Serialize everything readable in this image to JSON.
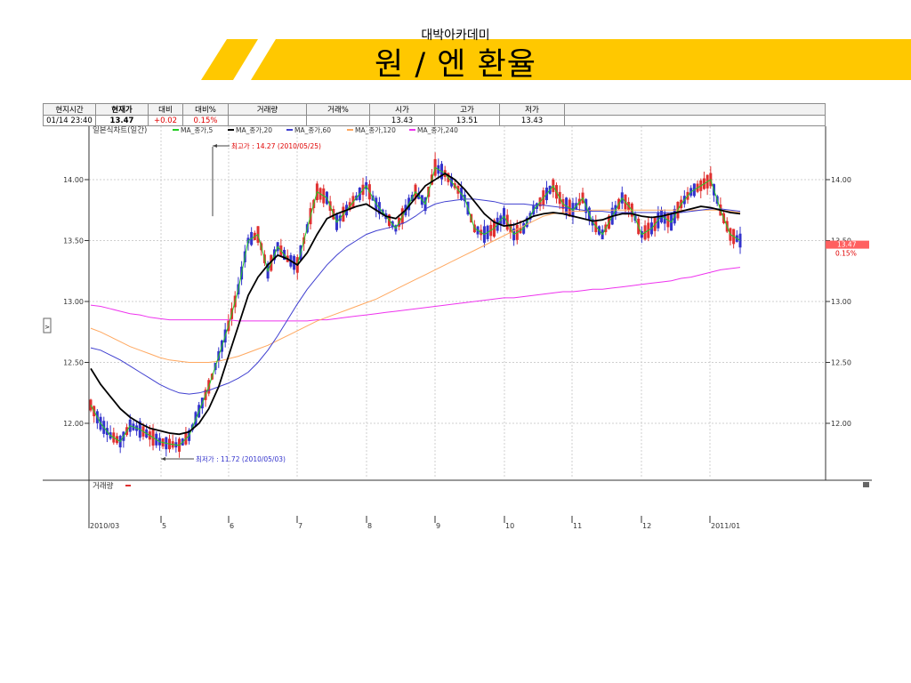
{
  "header": {
    "subtitle": "대박아카데미",
    "title": "원 / 엔 환율"
  },
  "quote_table": {
    "headers": [
      "현지시간",
      "현재가",
      "대비",
      "대비%",
      "거래량",
      "거래%",
      "시가",
      "고가",
      "저가",
      ""
    ],
    "values": [
      "01/14   23:40",
      "13.47",
      "+0.02",
      "0.15%",
      "",
      "",
      "13.43",
      "13.51",
      "13.43",
      ""
    ]
  },
  "colors": {
    "banner": "#ffc800",
    "ma5": "#22cc22",
    "ma20": "#000000",
    "ma60": "#4040d0",
    "ma120": "#ffa860",
    "ma240": "#ee33ee",
    "up": "#e03030",
    "down": "#3333cc"
  },
  "chart_data": {
    "type": "line",
    "title": "일본식차트(일간)",
    "legend": [
      {
        "name": "MA_종가,5",
        "color": "#22cc22"
      },
      {
        "name": "MA_종가,20",
        "color": "#000000"
      },
      {
        "name": "MA_종가,60",
        "color": "#4040d0"
      },
      {
        "name": "MA_종가,120",
        "color": "#ffa860"
      },
      {
        "name": "MA_종가,240",
        "color": "#ee33ee"
      }
    ],
    "x_labels": [
      "2010/03",
      "5",
      "6",
      "7",
      "8",
      "9",
      "10",
      "11",
      "12",
      "2011/01"
    ],
    "yticks": [
      "14.00",
      "13.50",
      "13.00",
      "12.50",
      "12.00"
    ],
    "ylim": [
      11.55,
      14.45
    ],
    "annotations": {
      "high": "최고가 : 14.27 (2010/05/25)",
      "low": "최저가 : 11.72 (2010/05/03)"
    },
    "current_price": "13.47",
    "current_change": "0.15%",
    "volume_label": "거래량",
    "series": [
      {
        "name": "MA_종가,5",
        "values": [
          12.15,
          12.0,
          11.9,
          11.85,
          11.98,
          11.95,
          11.9,
          11.85,
          11.83,
          11.82,
          11.9,
          12.1,
          12.3,
          12.55,
          12.8,
          13.1,
          13.5,
          13.55,
          13.25,
          13.45,
          13.35,
          13.3,
          13.6,
          13.9,
          13.85,
          13.65,
          13.75,
          13.85,
          13.95,
          13.8,
          13.7,
          13.6,
          13.75,
          13.9,
          13.8,
          14.1,
          14.05,
          13.95,
          13.85,
          13.6,
          13.55,
          13.6,
          13.7,
          13.55,
          13.6,
          13.75,
          13.85,
          13.95,
          13.8,
          13.75,
          13.85,
          13.65,
          13.55,
          13.7,
          13.85,
          13.75,
          13.55,
          13.6,
          13.7,
          13.65,
          13.8,
          13.9,
          13.95,
          14.0,
          13.75,
          13.55,
          13.5
        ]
      },
      {
        "name": "MA_종가,20",
        "values": [
          12.45,
          12.32,
          12.22,
          12.12,
          12.05,
          12.0,
          11.96,
          11.94,
          11.92,
          11.91,
          11.93,
          12.0,
          12.12,
          12.3,
          12.55,
          12.8,
          13.05,
          13.2,
          13.3,
          13.38,
          13.35,
          13.3,
          13.4,
          13.55,
          13.68,
          13.72,
          13.75,
          13.78,
          13.8,
          13.75,
          13.7,
          13.68,
          13.75,
          13.85,
          13.95,
          14.0,
          14.05,
          14.0,
          13.92,
          13.82,
          13.72,
          13.65,
          13.62,
          13.63,
          13.66,
          13.7,
          13.72,
          13.73,
          13.72,
          13.7,
          13.68,
          13.66,
          13.67,
          13.7,
          13.72,
          13.72,
          13.7,
          13.69,
          13.7,
          13.72,
          13.74,
          13.76,
          13.78,
          13.77,
          13.75,
          13.73,
          13.72
        ]
      },
      {
        "name": "MA_종가,60",
        "values": [
          12.62,
          12.6,
          12.56,
          12.52,
          12.47,
          12.42,
          12.37,
          12.32,
          12.28,
          12.25,
          12.24,
          12.25,
          12.27,
          12.3,
          12.33,
          12.37,
          12.42,
          12.5,
          12.6,
          12.72,
          12.85,
          12.98,
          13.1,
          13.2,
          13.3,
          13.38,
          13.45,
          13.5,
          13.55,
          13.58,
          13.6,
          13.62,
          13.65,
          13.7,
          13.76,
          13.8,
          13.82,
          13.83,
          13.84,
          13.84,
          13.83,
          13.82,
          13.8,
          13.8,
          13.8,
          13.79,
          13.79,
          13.78,
          13.77,
          13.76,
          13.75,
          13.74,
          13.74,
          13.73,
          13.73,
          13.73,
          13.73,
          13.73,
          13.73,
          13.73,
          13.73,
          13.74,
          13.75,
          13.76,
          13.76,
          13.75,
          13.74
        ]
      },
      {
        "name": "MA_종가,120",
        "values": [
          12.78,
          12.75,
          12.71,
          12.67,
          12.63,
          12.6,
          12.57,
          12.54,
          12.52,
          12.51,
          12.5,
          12.5,
          12.5,
          12.51,
          12.53,
          12.55,
          12.58,
          12.61,
          12.64,
          12.68,
          12.72,
          12.76,
          12.8,
          12.84,
          12.87,
          12.9,
          12.93,
          12.96,
          12.99,
          13.02,
          13.06,
          13.1,
          13.14,
          13.18,
          13.22,
          13.26,
          13.3,
          13.34,
          13.38,
          13.42,
          13.46,
          13.5,
          13.54,
          13.58,
          13.62,
          13.66,
          13.7,
          13.72,
          13.73,
          13.74,
          13.74,
          13.75,
          13.75,
          13.75,
          13.75,
          13.75,
          13.75,
          13.75,
          13.75,
          13.75,
          13.75,
          13.75,
          13.75,
          13.75,
          13.75,
          13.74,
          13.73
        ]
      },
      {
        "name": "MA_종가,240",
        "values": [
          12.97,
          12.96,
          12.94,
          12.92,
          12.9,
          12.89,
          12.87,
          12.86,
          12.85,
          12.85,
          12.85,
          12.85,
          12.85,
          12.85,
          12.85,
          12.84,
          12.84,
          12.84,
          12.84,
          12.84,
          12.84,
          12.84,
          12.84,
          12.85,
          12.85,
          12.86,
          12.87,
          12.88,
          12.89,
          12.9,
          12.91,
          12.92,
          12.93,
          12.94,
          12.95,
          12.96,
          12.97,
          12.98,
          12.99,
          13.0,
          13.01,
          13.02,
          13.03,
          13.03,
          13.04,
          13.05,
          13.06,
          13.07,
          13.08,
          13.08,
          13.09,
          13.1,
          13.1,
          13.11,
          13.12,
          13.13,
          13.14,
          13.15,
          13.16,
          13.17,
          13.19,
          13.2,
          13.22,
          13.24,
          13.26,
          13.27,
          13.28
        ]
      }
    ]
  }
}
